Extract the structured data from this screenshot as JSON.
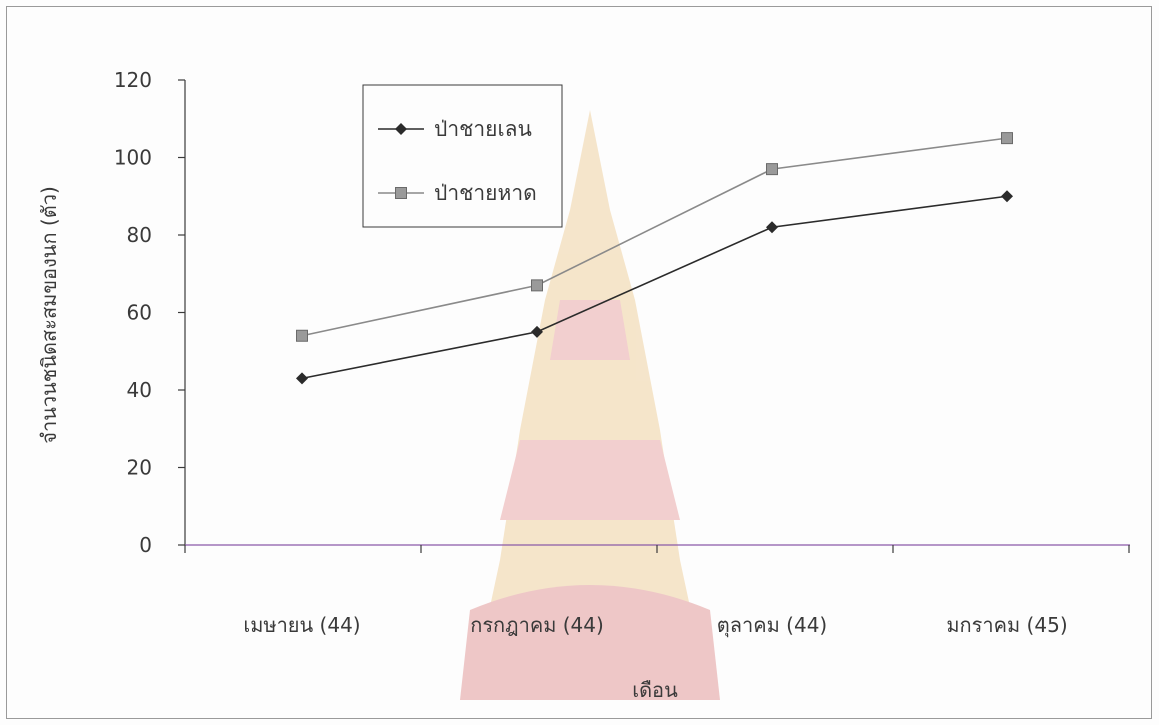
{
  "chart_data": {
    "type": "line",
    "xlabel": "เดือน",
    "ylabel": "จำนวนชนิดสะสมของนก (ตัว)",
    "categories": [
      "เมษายน (44)",
      "กรกฎาคม (44)",
      "ตุลาคม (44)",
      "มกราคม (45)"
    ],
    "ylim": [
      0,
      120
    ],
    "yticks": [
      0,
      20,
      40,
      60,
      80,
      100,
      120
    ],
    "grid": false,
    "legend_position": "top-left",
    "series": [
      {
        "name": "ป่าชายเลน",
        "marker": "diamond",
        "color": "#2b2b2b",
        "values": [
          43,
          55,
          82,
          90
        ]
      },
      {
        "name": "ป่าชายหาด",
        "marker": "square",
        "color": "#8a8a8a",
        "values": [
          54,
          67,
          97,
          105
        ]
      }
    ]
  }
}
